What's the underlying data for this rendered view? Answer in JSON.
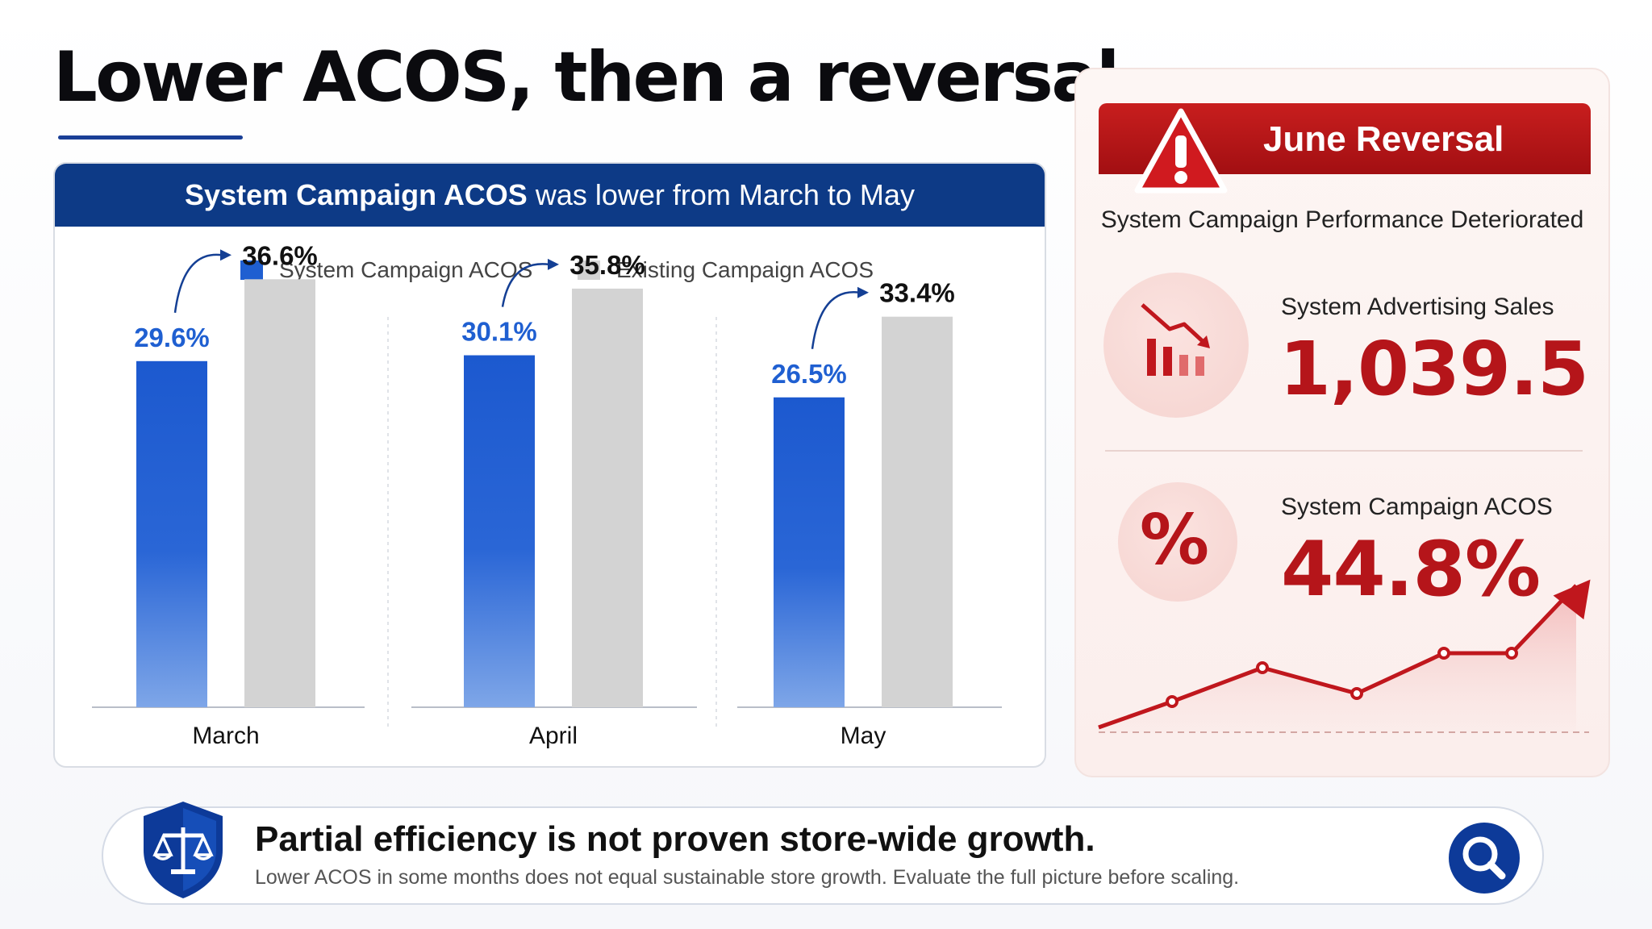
{
  "title": "Lower ACOS, then a reversal",
  "chart_header": {
    "highlight": "System Campaign ACOS",
    "rest": " was lower from March to May"
  },
  "colors": {
    "brand_blue": "#0d3a86",
    "system_bar": "#1f5fd1",
    "existing_bar": "#d3d3d3",
    "alert_red": "#b5151a"
  },
  "chart_data": {
    "type": "bar",
    "categories": [
      "March",
      "April",
      "May"
    ],
    "series": [
      {
        "name": "System Campaign ACOS",
        "values": [
          29.6,
          30.1,
          26.5
        ],
        "labels": [
          "29.6%",
          "30.1%",
          "26.5%"
        ],
        "color": "#1f5fd1"
      },
      {
        "name": "Existing Campaign ACOS",
        "values": [
          36.6,
          35.8,
          33.4
        ],
        "labels": [
          "36.6%",
          "35.8%",
          "33.4%"
        ],
        "color": "#d3d3d3"
      }
    ],
    "ylim": [
      0,
      40
    ],
    "grid": false,
    "legend": "top-center",
    "title": "",
    "xlabel": "",
    "ylabel": ""
  },
  "june": {
    "banner": "June Reversal",
    "subtitle": "System Campaign Performance Deteriorated",
    "sales_label": "System Advertising Sales",
    "sales_value": "1,039.5",
    "acos_label": "System Campaign ACOS",
    "acos_value": "44.8%",
    "percent_symbol": "%",
    "sales_icon": "declining-bar-chart-icon",
    "warning_icon": "warning-triangle-icon",
    "trend_icon": "rising-line-trend-icon"
  },
  "bottom": {
    "headline": "Partial efficiency is not proven store-wide growth.",
    "sub": "Lower ACOS in some months does not equal sustainable store growth. Evaluate the full picture before scaling.",
    "left_icon": "shield-scales-icon",
    "right_icon": "search-icon"
  }
}
